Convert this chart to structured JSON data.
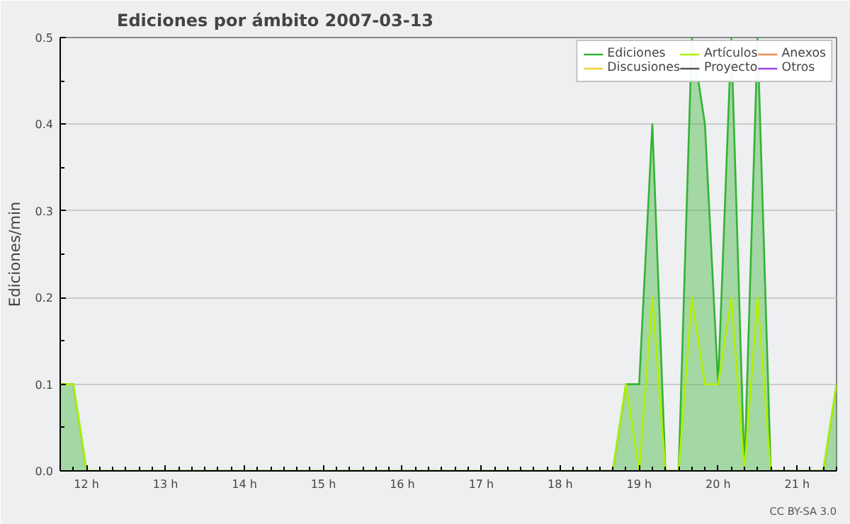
{
  "chart_data": {
    "type": "area",
    "title": "Ediciones por ámbito  2007-03-13",
    "ylabel": "Ediciones/min",
    "x": [
      11.667,
      11.833,
      12.0,
      18.667,
      18.833,
      19.0,
      19.167,
      19.333,
      19.5,
      19.667,
      19.833,
      20.0,
      20.167,
      20.333,
      20.5,
      20.667,
      21.333,
      21.5
    ],
    "series": [
      {
        "name": "Ediciones",
        "color": "#33b333",
        "values": [
          0.1,
          0.1,
          0,
          0,
          0.1,
          0.1,
          0.4,
          0,
          0,
          0.5,
          0.4,
          0.1,
          0.5,
          0,
          0.5,
          0,
          0,
          0.1
        ]
      },
      {
        "name": "Discusiones",
        "type": "line",
        "color": "#f0d040",
        "values": [
          null,
          null,
          null,
          null,
          null,
          null,
          null,
          null,
          null,
          null,
          null,
          null,
          null,
          null,
          null,
          null,
          null,
          null
        ]
      },
      {
        "name": "Artículos",
        "type": "line",
        "color": "#b0f000",
        "values": [
          0.1,
          0.1,
          0,
          0,
          0.1,
          0,
          0.2,
          0,
          0,
          0.2,
          0.1,
          0.1,
          0.2,
          0,
          0.2,
          0,
          0,
          0.1
        ]
      },
      {
        "name": "Proyecto",
        "type": "line",
        "color": "#555555",
        "values": [
          null,
          null,
          null,
          null,
          null,
          null,
          null,
          null,
          null,
          null,
          null,
          null,
          null,
          null,
          null,
          null,
          null,
          null
        ]
      },
      {
        "name": "Anexos",
        "type": "line",
        "color": "#f08a50",
        "values": [
          null,
          null,
          null,
          null,
          null,
          null,
          null,
          null,
          null,
          null,
          null,
          null,
          null,
          null,
          null,
          null,
          null,
          null
        ]
      },
      {
        "name": "Otros",
        "type": "line",
        "color": "#9944ee",
        "values": [
          null,
          null,
          null,
          null,
          null,
          null,
          null,
          null,
          null,
          null,
          null,
          null,
          null,
          null,
          null,
          null,
          null,
          null
        ]
      }
    ],
    "xlim": [
      11.667,
      21.5
    ],
    "ylim": [
      0,
      0.5
    ],
    "xticks": [
      {
        "value": 12,
        "label": "12 h"
      },
      {
        "value": 13,
        "label": "13 h"
      },
      {
        "value": 14,
        "label": "14 h"
      },
      {
        "value": 15,
        "label": "15 h"
      },
      {
        "value": 16,
        "label": "16 h"
      },
      {
        "value": 17,
        "label": "17 h"
      },
      {
        "value": 18,
        "label": "18 h"
      },
      {
        "value": 19,
        "label": "19 h"
      },
      {
        "value": 20,
        "label": "20 h"
      },
      {
        "value": 21,
        "label": "21 h"
      }
    ],
    "yticks": [
      {
        "value": 0,
        "label": "0.0"
      },
      0.1,
      0.2,
      0.3,
      0.4,
      0.5
    ],
    "grid": "y",
    "legend": "top right",
    "annotations": [
      "CC BY-SA 3.0"
    ]
  }
}
